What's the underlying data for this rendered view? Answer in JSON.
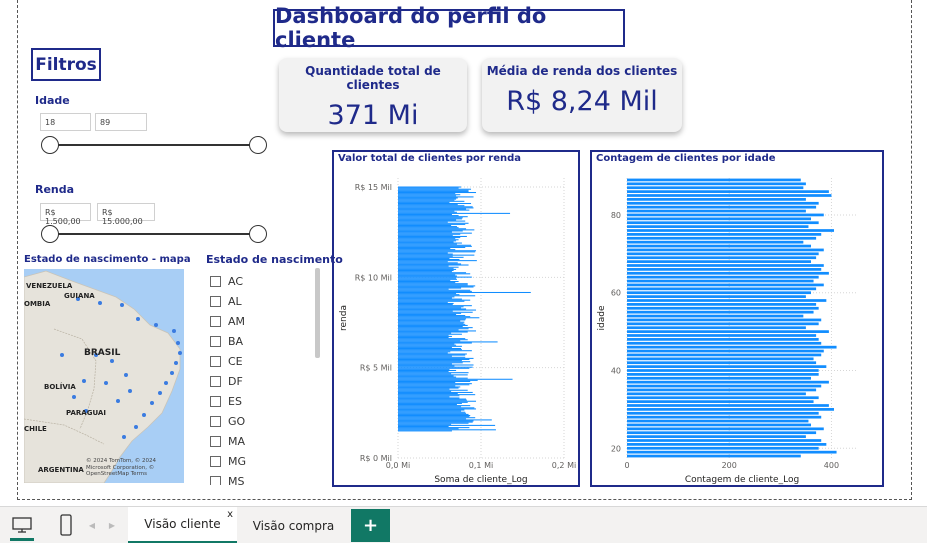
{
  "dashboard": {
    "title": "Dashboard do perfil do cliente",
    "filters_title": "Filtros"
  },
  "filters": {
    "age": {
      "label": "Idade",
      "min": "18",
      "max": "89",
      "selected_min": 18,
      "selected_max": 89
    },
    "income": {
      "label": "Renda",
      "min": "R$ 1.500,00",
      "max": "R$ 15.000,00",
      "selected_min": 1500,
      "selected_max": 15000
    }
  },
  "cards": [
    {
      "title": "Quantidade total de clientes",
      "value": "371 Mi"
    },
    {
      "title": "Média de renda dos clientes",
      "value": "R$ 8,24 Mil"
    }
  ],
  "map": {
    "title": "Estado de nascimento - mapa",
    "labels": [
      "VENEZUELA",
      "GUIANA",
      "OMBIA",
      "BRASIL",
      "BOLÍVIA",
      "PARAGUAI",
      "CHILE",
      "ARGENTINA"
    ],
    "attribution": "© 2024 TomTom, © 2024 Microsoft Corporation, © OpenStreetMap Terms",
    "colors": {
      "water": "#a8cef5",
      "land": "#e6e3db",
      "dot": "#3a7be0"
    }
  },
  "state_slicer": {
    "title": "Estado de nascimento",
    "items": [
      "AC",
      "AL",
      "AM",
      "BA",
      "CE",
      "DF",
      "ES",
      "GO",
      "MA",
      "MG",
      "MS"
    ]
  },
  "chart_data": [
    {
      "type": "bar",
      "title": "Valor total de clientes por renda",
      "xlabel": "Soma de cliente_Log",
      "ylabel": "renda",
      "orientation": "horizontal",
      "xlim": [
        0,
        0.2
      ],
      "ylim": [
        0,
        15500
      ],
      "x_ticks": [
        "0,0 Mi",
        "0,1 Mi",
        "0,2 Mi"
      ],
      "x_tick_values": [
        0,
        0.1,
        0.2
      ],
      "y_ticks": [
        "R$ 0 Mil",
        "R$ 5 Mil",
        "R$ 10 Mil",
        "R$ 15 Mil"
      ],
      "y_tick_values": [
        0,
        5000,
        10000,
        15000
      ],
      "color": "#118dff",
      "bin_start": 1500,
      "bin_end": 15000,
      "values": [
        0.065,
        0.118,
        0.073,
        0.086,
        0.061,
        0.117,
        0.064,
        0.085,
        0.09,
        0.091,
        0.113,
        0.082,
        0.093,
        0.086,
        0.087,
        0.085,
        0.082,
        0.081,
        0.076,
        0.08,
        0.094,
        0.092,
        0.076,
        0.087,
        0.071,
        0.077,
        0.084,
        0.094,
        0.083,
        0.082,
        0.074,
        0.062,
        0.074,
        0.093,
        0.072,
        0.09,
        0.064,
        0.084,
        0.062,
        0.073,
        0.075,
        0.069,
        0.086,
        0.089,
        0.069,
        0.087,
        0.096,
        0.138,
        0.084,
        0.07,
        0.067,
        0.084,
        0.064,
        0.085,
        0.061,
        0.07,
        0.062,
        0.086,
        0.09,
        0.068,
        0.091,
        0.065,
        0.078,
        0.087,
        0.077,
        0.086,
        0.091,
        0.081,
        0.065,
        0.081,
        0.083,
        0.06,
        0.063,
        0.089,
        0.077,
        0.076,
        0.065,
        0.077,
        0.07,
        0.068,
        0.089,
        0.12,
        0.075,
        0.084,
        0.081,
        0.061,
        0.065,
        0.061,
        0.077,
        0.064,
        0.084,
        0.094,
        0.073,
        0.085,
        0.09,
        0.078,
        0.084,
        0.081,
        0.079,
        0.08,
        0.075,
        0.081,
        0.082,
        0.098,
        0.087,
        0.081,
        0.07,
        0.076,
        0.09,
        0.066,
        0.094,
        0.082,
        0.076,
        0.079,
        0.089,
        0.066,
        0.067,
        0.06,
        0.08,
        0.087,
        0.077,
        0.065,
        0.068,
        0.093,
        0.074,
        0.07,
        0.16,
        0.089,
        0.087,
        0.061,
        0.076,
        0.091,
        0.093,
        0.084,
        0.084,
        0.069,
        0.073,
        0.063,
        0.071,
        0.07,
        0.089,
        0.071,
        0.069,
        0.087,
        0.082,
        0.065,
        0.067,
        0.07,
        0.067,
        0.073,
        0.061,
        0.085,
        0.076,
        0.072,
        0.06,
        0.095,
        0.074,
        0.062,
        0.079,
        0.066,
        0.092,
        0.066,
        0.06,
        0.093,
        0.094,
        0.069,
        0.063,
        0.081,
        0.089,
        0.088,
        0.071,
        0.077,
        0.067,
        0.07,
        0.073,
        0.069,
        0.075,
        0.083,
        0.066,
        0.075,
        0.089,
        0.065,
        0.078,
        0.092,
        0.082,
        0.073,
        0.071,
        0.064,
        0.081,
        0.085,
        0.06,
        0.081,
        0.07,
        0.077,
        0.078,
        0.084,
        0.073,
        0.065,
        0.135,
        0.071,
        0.068,
        0.086,
        0.082,
        0.091,
        0.09,
        0.08,
        0.072,
        0.088,
        0.062,
        0.08,
        0.068,
        0.07,
        0.072,
        0.091,
        0.07,
        0.075,
        0.069,
        0.094,
        0.085,
        0.085,
        0.088,
        0.073,
        0.076
      ]
    },
    {
      "type": "bar",
      "title": "Contagem de clientes por idade",
      "xlabel": "Contagem de cliente_Log",
      "ylabel": "idade",
      "orientation": "horizontal",
      "xlim": [
        0,
        450
      ],
      "ylim": [
        17.5,
        89.5
      ],
      "x_ticks": [
        "0",
        "200",
        "400"
      ],
      "x_tick_values": [
        0,
        200,
        400
      ],
      "y_ticks": [
        "20",
        "40",
        "60",
        "80"
      ],
      "y_tick_values": [
        20,
        40,
        60,
        80
      ],
      "color": "#118dff",
      "categories": [
        18,
        19,
        20,
        21,
        22,
        23,
        24,
        25,
        26,
        27,
        28,
        29,
        30,
        31,
        32,
        33,
        34,
        35,
        36,
        37,
        38,
        39,
        40,
        41,
        42,
        43,
        44,
        45,
        46,
        47,
        48,
        49,
        50,
        51,
        52,
        53,
        54,
        55,
        56,
        57,
        58,
        59,
        60,
        61,
        62,
        63,
        64,
        65,
        66,
        67,
        68,
        69,
        70,
        71,
        72,
        73,
        74,
        75,
        76,
        77,
        78,
        79,
        80,
        81,
        82,
        83,
        84,
        85,
        86,
        87,
        88,
        89
      ],
      "values": [
        340,
        410,
        375,
        390,
        380,
        350,
        370,
        385,
        360,
        355,
        380,
        375,
        405,
        395,
        365,
        375,
        350,
        370,
        380,
        395,
        360,
        375,
        375,
        390,
        370,
        365,
        380,
        385,
        410,
        380,
        375,
        370,
        395,
        350,
        375,
        380,
        345,
        365,
        375,
        370,
        390,
        350,
        360,
        370,
        385,
        365,
        375,
        395,
        380,
        385,
        360,
        370,
        375,
        385,
        360,
        345,
        370,
        380,
        405,
        355,
        375,
        360,
        385,
        350,
        370,
        375,
        350,
        400,
        395,
        345,
        350,
        340
      ]
    }
  ],
  "bottom_bar": {
    "tabs": [
      "Visão cliente",
      "Visão compra"
    ],
    "active_tab": "Visão cliente",
    "close_glyph": "x",
    "add_label": "+",
    "icons": [
      "desktop-icon",
      "phone-icon",
      "prev-icon",
      "next-icon"
    ]
  }
}
